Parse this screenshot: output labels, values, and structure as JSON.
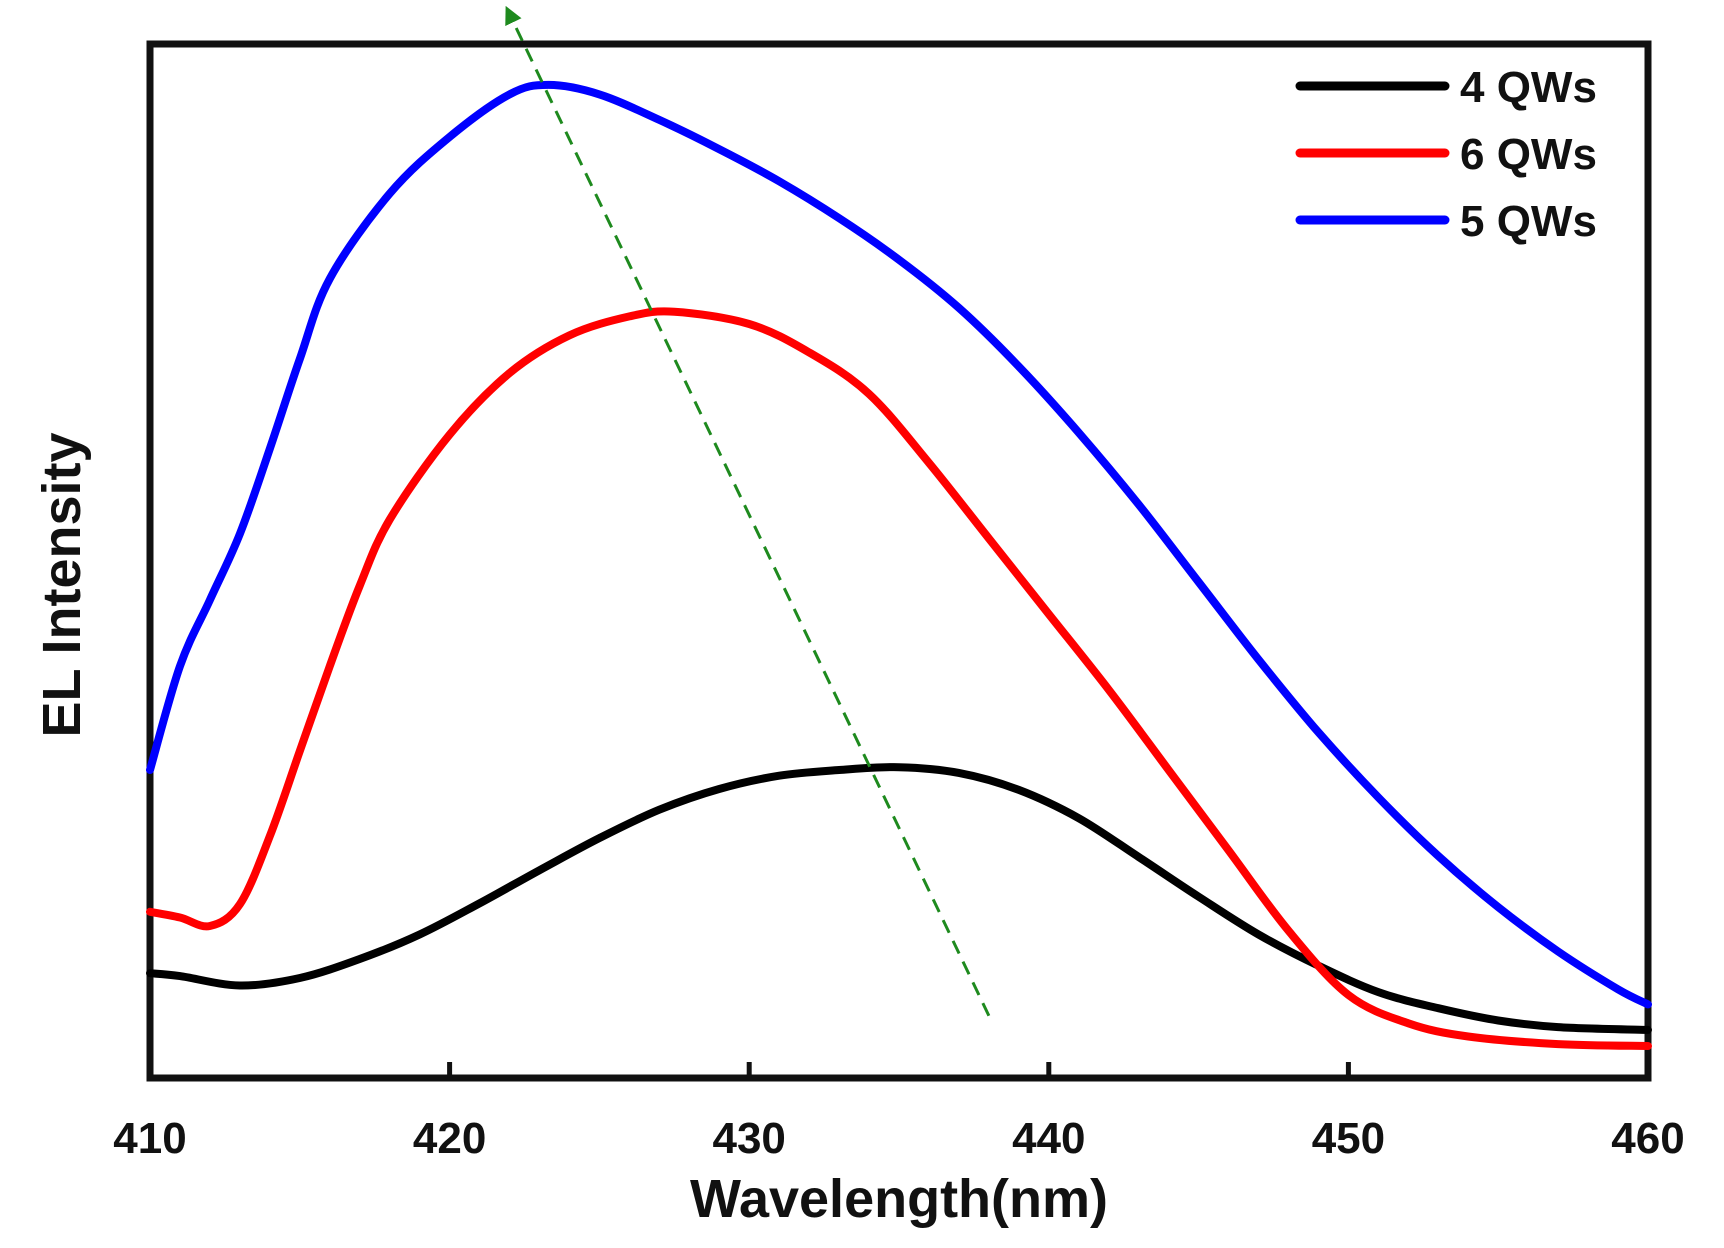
{
  "chart_data": {
    "type": "line",
    "title": "",
    "xlabel": "Wavelength(nm)",
    "ylabel": "EL Intensity",
    "xlim": [
      410,
      460
    ],
    "ylim": [
      0,
      100
    ],
    "xticks": [
      "410",
      "420",
      "430",
      "440",
      "450",
      "460"
    ],
    "y_tick_labels_shown": false,
    "grid": false,
    "legend_position": "top-right",
    "series": [
      {
        "name": "4 QWs",
        "color": "#000000",
        "points": [
          [
            410,
            9.5
          ],
          [
            411,
            9.2
          ],
          [
            413,
            8.2
          ],
          [
            415,
            9.0
          ],
          [
            417,
            11.0
          ],
          [
            419,
            13.6
          ],
          [
            421,
            16.9
          ],
          [
            423,
            20.4
          ],
          [
            425,
            23.8
          ],
          [
            427,
            26.8
          ],
          [
            429,
            29.0
          ],
          [
            431,
            30.4
          ],
          [
            433,
            31.0
          ],
          [
            435,
            31.3
          ],
          [
            437,
            30.7
          ],
          [
            439,
            28.9
          ],
          [
            441,
            25.9
          ],
          [
            443,
            21.8
          ],
          [
            445,
            17.6
          ],
          [
            447,
            13.6
          ],
          [
            449,
            10.3
          ],
          [
            451,
            7.5
          ],
          [
            453,
            5.8
          ],
          [
            455,
            4.5
          ],
          [
            457,
            3.8
          ],
          [
            460,
            3.5
          ]
        ]
      },
      {
        "name": "6 QWs",
        "color": "#ff0000",
        "points": [
          [
            410,
            16.0
          ],
          [
            411,
            15.4
          ],
          [
            412,
            14.5
          ],
          [
            413,
            16.8
          ],
          [
            414,
            24.0
          ],
          [
            415,
            33.0
          ],
          [
            416,
            42.0
          ],
          [
            417,
            50.5
          ],
          [
            418,
            57.5
          ],
          [
            420,
            66.5
          ],
          [
            422,
            73.0
          ],
          [
            424,
            77.0
          ],
          [
            426,
            79.0
          ],
          [
            427.5,
            79.5
          ],
          [
            430,
            78.2
          ],
          [
            432,
            75.2
          ],
          [
            434,
            70.8
          ],
          [
            436,
            63.5
          ],
          [
            438,
            55.5
          ],
          [
            440,
            47.5
          ],
          [
            442,
            39.5
          ],
          [
            444,
            31.0
          ],
          [
            446,
            22.5
          ],
          [
            448,
            14.0
          ],
          [
            450,
            7.2
          ],
          [
            452,
            4.2
          ],
          [
            454,
            2.8
          ],
          [
            457,
            2.0
          ],
          [
            460,
            1.8
          ]
        ]
      },
      {
        "name": "5 QWs",
        "color": "#0000ff",
        "points": [
          [
            410,
            31.0
          ],
          [
            411,
            42.0
          ],
          [
            412,
            49.0
          ],
          [
            413,
            56.0
          ],
          [
            414,
            65.0
          ],
          [
            415,
            74.5
          ],
          [
            416,
            83.0
          ],
          [
            418,
            92.0
          ],
          [
            420,
            98.0
          ],
          [
            422,
            102.5
          ],
          [
            423.3,
            103.5
          ],
          [
            425,
            102.5
          ],
          [
            427,
            99.8
          ],
          [
            429,
            96.7
          ],
          [
            431,
            93.3
          ],
          [
            433,
            89.4
          ],
          [
            435,
            85.0
          ],
          [
            437,
            79.9
          ],
          [
            439,
            73.7
          ],
          [
            441,
            66.7
          ],
          [
            443,
            59.1
          ],
          [
            445,
            50.9
          ],
          [
            447,
            42.7
          ],
          [
            449,
            35.0
          ],
          [
            451,
            28.1
          ],
          [
            453,
            21.9
          ],
          [
            455,
            16.5
          ],
          [
            457,
            11.8
          ],
          [
            459,
            7.8
          ],
          [
            460,
            6.2
          ]
        ]
      }
    ],
    "annotations": [
      {
        "type": "dashed-arrow",
        "color": "#1e8a1e",
        "from": [
          438,
          5
        ],
        "to": [
          422,
          111
        ]
      }
    ]
  }
}
